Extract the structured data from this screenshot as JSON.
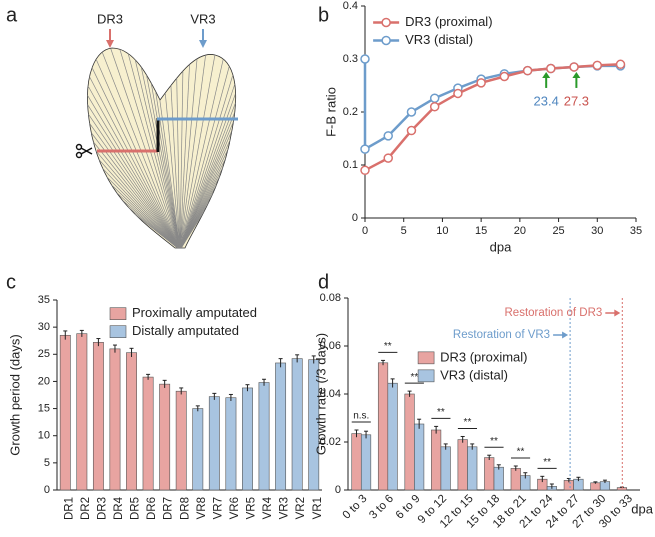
{
  "diagram": {
    "panel": "a",
    "labels": [
      "DR3",
      "VR3"
    ],
    "colors": [
      "#d9706c",
      "#6d9ccb"
    ]
  },
  "chart_data": [
    {
      "panel": "b",
      "type": "line",
      "xlabel": "dpa",
      "ylabel": "F-B ratio",
      "xlim": [
        0,
        35
      ],
      "xticks": [
        0,
        5,
        10,
        15,
        20,
        25,
        30,
        35
      ],
      "ylim": [
        0,
        0.4
      ],
      "yticks": [
        0,
        0.1,
        0.2,
        0.3,
        0.4
      ],
      "legend": "upper left",
      "series": [
        {
          "name": "DR3 (proximal)",
          "color": "#d9706c",
          "x": [
            0,
            3,
            6,
            9,
            12,
            15,
            18,
            21,
            24,
            27,
            30,
            33
          ],
          "values": [
            0.09,
            0.113,
            0.165,
            0.21,
            0.235,
            0.255,
            0.267,
            0.278,
            0.282,
            0.285,
            0.288,
            0.29
          ]
        },
        {
          "name": "VR3 (distal)",
          "color": "#6d9ccb",
          "x": [
            0,
            0,
            3,
            6,
            9,
            12,
            15,
            18,
            21,
            24,
            27,
            30,
            33
          ],
          "values": [
            0.3,
            0.13,
            0.155,
            0.2,
            0.226,
            0.245,
            0.262,
            0.272,
            0.278,
            0.282,
            0.285,
            0.287,
            0.287
          ]
        }
      ],
      "annotations": [
        {
          "x": 23.4,
          "color": "#4f86bf"
        },
        {
          "x": 27.3,
          "color": "#c9524d"
        }
      ],
      "arrow_color": "#2a9a2a"
    },
    {
      "panel": "c",
      "type": "bar",
      "grouped": false,
      "ylabel": "Growth period (days)",
      "legend": "upper center",
      "categories": [
        "DR1",
        "DR2",
        "DR3",
        "DR4",
        "DR5",
        "DR6",
        "DR7",
        "DR8",
        "VR8",
        "VR7",
        "VR6",
        "VR5",
        "VR4",
        "VR3",
        "VR2",
        "VR1"
      ],
      "ylim": [
        0,
        35
      ],
      "yticks": [
        0,
        5,
        10,
        15,
        20,
        25,
        30,
        35
      ],
      "series": [
        {
          "name": "Proximally amputated",
          "color": "#e8a4a1",
          "values": [
            28.5,
            28.8,
            27.2,
            26,
            25.3,
            20.8,
            19.5,
            18.2,
            null,
            null,
            null,
            null,
            null,
            null,
            null,
            null
          ],
          "errors": [
            0.8,
            0.6,
            0.7,
            0.7,
            0.8,
            0.5,
            0.7,
            0.6,
            null,
            null,
            null,
            null,
            null,
            null,
            null,
            null
          ]
        },
        {
          "name": "Distally amputated",
          "color": "#a8c4e0",
          "values": [
            null,
            null,
            null,
            null,
            null,
            null,
            null,
            null,
            15,
            17.2,
            17,
            18.8,
            19.8,
            23.4,
            24.2,
            24
          ],
          "errors": [
            null,
            null,
            null,
            null,
            null,
            null,
            null,
            null,
            0.5,
            0.6,
            0.6,
            0.6,
            0.6,
            0.8,
            0.7,
            0.7
          ]
        }
      ]
    },
    {
      "panel": "d",
      "type": "bar",
      "grouped": true,
      "xlabel": "dpa",
      "ylabel": "Growth rate (/3 days)",
      "legend": "center left",
      "categories": [
        "0 to 3",
        "3 to 6",
        "6 to 9",
        "9 to 12",
        "12 to 15",
        "15 to 18",
        "18 to 21",
        "21 to 24",
        "24 to 27",
        "27 to 30",
        "30 to 33"
      ],
      "ylim": [
        0,
        0.08
      ],
      "yticks": [
        0,
        0.02,
        0.04,
        0.06,
        0.08
      ],
      "series": [
        {
          "name": "DR3 (proximal)",
          "color": "#e8a4a1",
          "values": [
            0.0235,
            0.053,
            0.04,
            0.025,
            0.021,
            0.0135,
            0.009,
            0.0045,
            0.004,
            0.003,
            0.001
          ],
          "errors": [
            0.0015,
            0.001,
            0.0012,
            0.0015,
            0.0013,
            0.001,
            0.001,
            0.0012,
            0.0008,
            0.0004,
            0.0002
          ]
        },
        {
          "name": "VR3 (distal)",
          "color": "#a8c4e0",
          "values": [
            0.023,
            0.0445,
            0.0275,
            0.018,
            0.018,
            0.0095,
            0.006,
            0.0015,
            0.0045,
            0.0035,
            null
          ],
          "errors": [
            0.0015,
            0.0018,
            0.002,
            0.0012,
            0.0012,
            0.001,
            0.0012,
            0.001,
            0.0008,
            0.0006,
            null
          ]
        }
      ],
      "significance": [
        "n.s.",
        "**",
        "**",
        "**",
        "**",
        "**",
        "**",
        "**"
      ],
      "annotations": [
        {
          "text": "Restoration of VR3",
          "x": 25.1,
          "color": "#6d9ccb"
        },
        {
          "text": "Restoration of DR3",
          "x": 31.0,
          "color": "#d9706c"
        }
      ]
    }
  ]
}
